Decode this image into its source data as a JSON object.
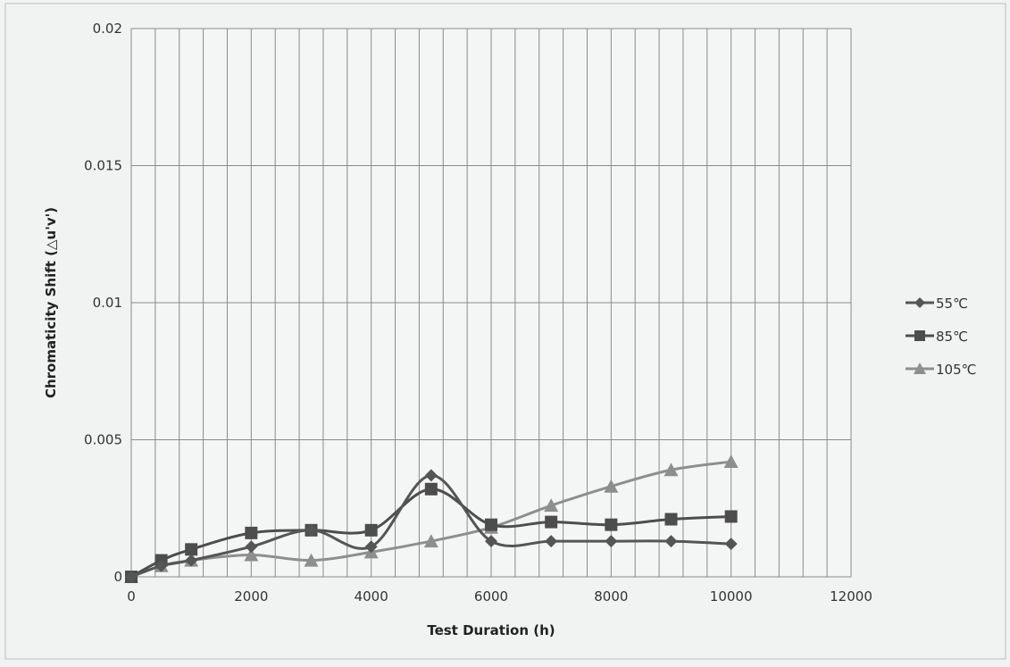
{
  "chart_data": {
    "type": "line",
    "xlabel": "Test Duration (h)",
    "ylabel": "Chromaticity Shift (△u'v')",
    "xlim": [
      0,
      12000
    ],
    "ylim": [
      0,
      0.02
    ],
    "x_ticks": [
      "0",
      "2000",
      "4000",
      "6000",
      "8000",
      "10000",
      "12000"
    ],
    "y_ticks": [
      "0",
      "0.005",
      "0.01",
      "0.015",
      "0.02"
    ],
    "grid": true,
    "legend_position": "right",
    "series": [
      {
        "name": "55℃",
        "marker": "diamond",
        "color": "#555555",
        "x": [
          0,
          500,
          1000,
          2000,
          3000,
          4000,
          5000,
          6000,
          7000,
          8000,
          9000,
          10000
        ],
        "y": [
          0,
          0.0004,
          0.0006,
          0.0011,
          0.0017,
          0.0011,
          0.0037,
          0.0013,
          0.0013,
          0.0013,
          0.0013,
          0.0012
        ]
      },
      {
        "name": "85℃",
        "marker": "square",
        "color": "#4d4d4d",
        "x": [
          0,
          500,
          1000,
          2000,
          3000,
          4000,
          5000,
          6000,
          7000,
          8000,
          9000,
          10000
        ],
        "y": [
          0,
          0.0006,
          0.001,
          0.0016,
          0.0017,
          0.0017,
          0.0032,
          0.0019,
          0.002,
          0.0019,
          0.0021,
          0.0022
        ]
      },
      {
        "name": "105℃",
        "marker": "triangle",
        "color": "#8e8e8e",
        "x": [
          0,
          500,
          1000,
          2000,
          3000,
          4000,
          5000,
          6000,
          7000,
          8000,
          9000,
          10000
        ],
        "y": [
          0,
          0.0004,
          0.0006,
          0.0008,
          0.0006,
          0.0009,
          0.0013,
          0.0018,
          0.0026,
          0.0033,
          0.0039,
          0.0042
        ]
      }
    ]
  }
}
